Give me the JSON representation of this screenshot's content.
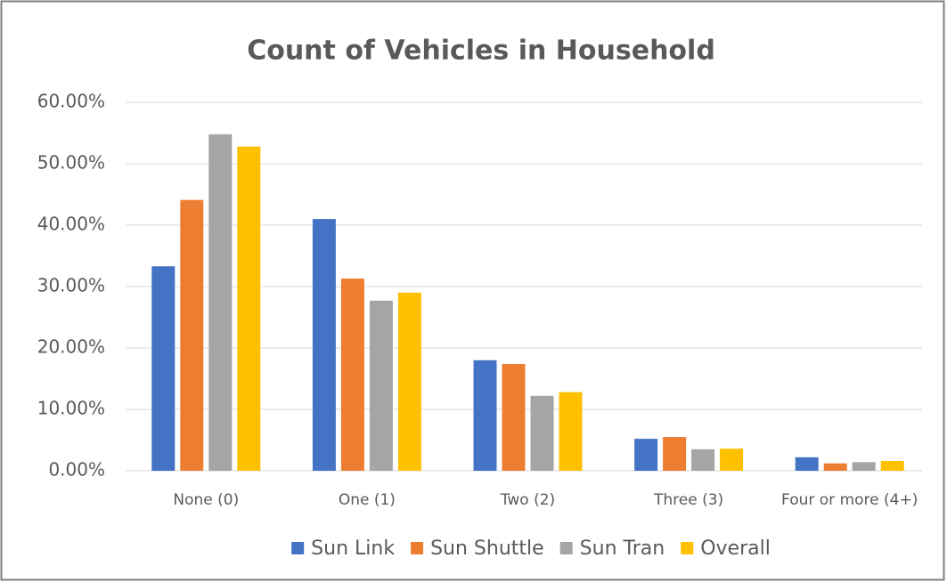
{
  "chart_data": {
    "type": "bar",
    "title": "Count of Vehicles in Household",
    "categories": [
      "None (0)",
      "One (1)",
      "Two (2)",
      "Three (3)",
      "Four or more (4+)"
    ],
    "series": [
      {
        "name": "Sun Link",
        "color": "#4472c4",
        "values": [
          33.3,
          41.0,
          18.0,
          5.2,
          2.2
        ]
      },
      {
        "name": "Sun Shuttle",
        "color": "#ed7d31",
        "values": [
          44.1,
          31.3,
          17.4,
          5.5,
          1.2
        ]
      },
      {
        "name": "Sun Tran",
        "color": "#a5a5a5",
        "values": [
          54.8,
          27.7,
          12.2,
          3.5,
          1.4
        ]
      },
      {
        "name": "Overall",
        "color": "#ffc000",
        "values": [
          52.8,
          29.0,
          12.8,
          3.6,
          1.6
        ]
      }
    ],
    "ylim": [
      0,
      60
    ],
    "yticks": [
      {
        "value": 0,
        "label": "0.00%"
      },
      {
        "value": 10,
        "label": "10.00%"
      },
      {
        "value": 20,
        "label": "20.00%"
      },
      {
        "value": 30,
        "label": "30.00%"
      },
      {
        "value": 40,
        "label": "40.00%"
      },
      {
        "value": 50,
        "label": "50.00%"
      },
      {
        "value": 60,
        "label": "60.00%"
      }
    ],
    "grid": true,
    "legend": "bottom"
  }
}
